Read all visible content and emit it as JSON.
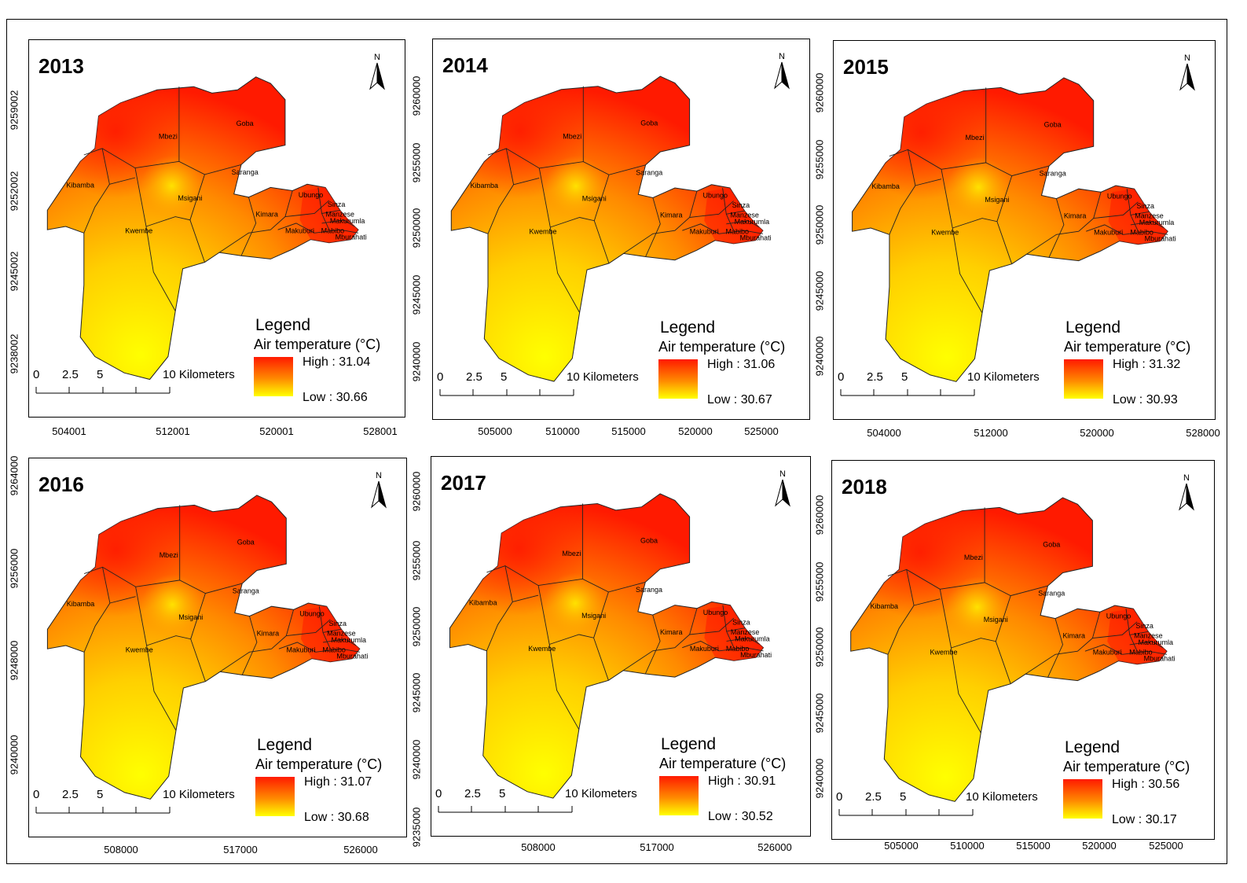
{
  "legend_title": "Legend",
  "legend_subtitle": "Air temperature (°C)",
  "scale": {
    "labels": [
      "0",
      "2.5",
      "5",
      "10 Kilometers"
    ]
  },
  "north_label": "N",
  "colors": {
    "high": "#ff1a00",
    "mid": "#ff8a00",
    "low": "#ffff00"
  },
  "district_names": [
    "Goba",
    "Mbezi",
    "Kibamba",
    "Saranga",
    "Msigani",
    "Kwembe",
    "Ubungo",
    "Sinza",
    "Kimara",
    "Manzese",
    "Makurumla",
    "Makuburi",
    "Mabibo",
    "Mburahati"
  ],
  "panels": [
    {
      "year": "2013",
      "high": "High : 31.04",
      "low": "Low : 30.66",
      "x_ticks": [
        "504001",
        "512001",
        "520001",
        "528001"
      ],
      "y_ticks": [
        "9259002",
        "9252002",
        "9245002",
        "9238002"
      ]
    },
    {
      "year": "2014",
      "high": "High : 31.06",
      "low": "Low : 30.67",
      "x_ticks": [
        "505000",
        "510000",
        "515000",
        "520000",
        "525000"
      ],
      "y_ticks": [
        "9260000",
        "9255000",
        "9250000",
        "9245000",
        "9240000"
      ]
    },
    {
      "year": "2015",
      "high": "High : 31.32",
      "low": "Low : 30.93",
      "x_ticks": [
        "504000",
        "512000",
        "520000",
        "528000"
      ],
      "y_ticks": [
        "9260000",
        "9255000",
        "9250000",
        "9245000",
        "9240000"
      ]
    },
    {
      "year": "2016",
      "high": "High : 31.07",
      "low": "Low : 30.68",
      "x_ticks": [
        "508000",
        "517000",
        "526000"
      ],
      "y_ticks": [
        "9264000",
        "9256000",
        "9248000",
        "9240000"
      ]
    },
    {
      "year": "2017",
      "high": "High : 30.91",
      "low": "Low : 30.52",
      "x_ticks": [
        "508000",
        "517000",
        "526000"
      ],
      "y_ticks": [
        "9260000",
        "9255000",
        "9250000",
        "9245000",
        "9240000",
        "9235000"
      ]
    },
    {
      "year": "2018",
      "high": "High : 30.56",
      "low": "Low : 30.17",
      "x_ticks": [
        "505000",
        "510000",
        "515000",
        "520000",
        "525000"
      ],
      "y_ticks": [
        "9260000",
        "9255000",
        "9250000",
        "9245000",
        "9240000"
      ]
    }
  ]
}
